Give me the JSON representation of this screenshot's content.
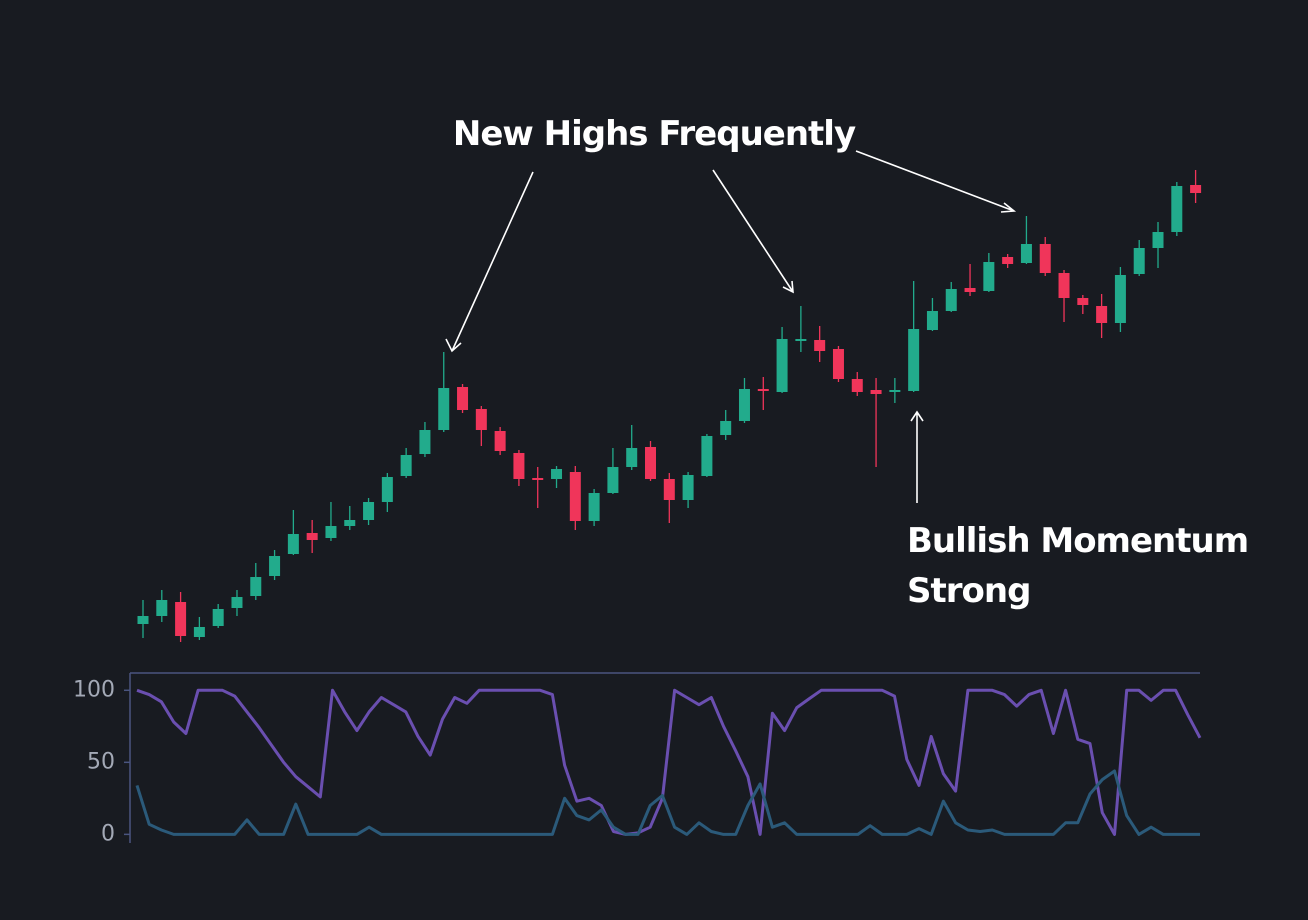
{
  "chart_data": [
    {
      "type": "candlestick",
      "annotations": [
        "New Highs Frequently",
        "Bullish Momentum",
        "Strong"
      ],
      "open": [
        7.6,
        8.4,
        9.8,
        6.3,
        7.4,
        9.2,
        10.4,
        12.4,
        14.6,
        16.7,
        16.2,
        17.4,
        18,
        19.8,
        22.4,
        24.6,
        27,
        31.3,
        29.1,
        26.9,
        24.7,
        22.2,
        22.1,
        22.8,
        17.9,
        20.7,
        23.3,
        25.3,
        22.1,
        20,
        22.4,
        26.5,
        27.9,
        31.1,
        30.8,
        36,
        36,
        35.1,
        32.1,
        31,
        30.9,
        30.9,
        37,
        38.9,
        41.2,
        40.9,
        44.3,
        43.7,
        45.6,
        42.7,
        40.2,
        39.4,
        37.7,
        42.6,
        45.2,
        46.8,
        51.5
      ],
      "high": [
        10,
        11,
        10.8,
        8.3,
        9.6,
        11,
        13.7,
        15,
        19,
        18,
        19.8,
        19.4,
        20.2,
        22.7,
        25.2,
        27.8,
        34.8,
        31.6,
        29.4,
        27.3,
        25,
        23.3,
        23.4,
        23.4,
        21.1,
        25.2,
        27.5,
        25.9,
        22.7,
        22.8,
        26.6,
        29,
        32.2,
        32.3,
        37.3,
        39.4,
        37.4,
        35.4,
        32.8,
        32.2,
        32.2,
        41.9,
        40.2,
        41.8,
        43.6,
        44.7,
        44.6,
        48.4,
        46.3,
        43,
        40.5,
        40.6,
        43.3,
        46,
        47.8,
        51.8,
        53
      ],
      "low": [
        6.2,
        7.8,
        5.8,
        6,
        7.2,
        8.4,
        10,
        12,
        14.5,
        14.7,
        15.9,
        17,
        17.5,
        18.8,
        22.2,
        24.3,
        26.8,
        28.7,
        25.4,
        24.5,
        21.4,
        19.2,
        21.2,
        17,
        17.4,
        20.6,
        23,
        21.9,
        17.7,
        19.2,
        22.3,
        26,
        27.7,
        29,
        30.7,
        34.8,
        33.8,
        31.8,
        30.4,
        23.3,
        29.7,
        30.8,
        36.9,
        38.8,
        40.4,
        40.8,
        43.2,
        43.6,
        42.4,
        37.8,
        38.6,
        36.2,
        36.8,
        42.4,
        43.2,
        46.4,
        49.7
      ],
      "close": [
        8.4,
        10,
        6.4,
        7.3,
        9.1,
        10.3,
        12.3,
        14.4,
        16.6,
        16,
        17.4,
        18,
        19.8,
        22.3,
        24.5,
        27,
        31.2,
        29,
        27,
        24.9,
        22.1,
        22,
        23.1,
        17.9,
        20.7,
        23.3,
        25.2,
        22.1,
        20,
        22.5,
        26.4,
        27.9,
        31.1,
        30.9,
        36.1,
        36.1,
        34.9,
        32.1,
        30.8,
        30.6,
        31,
        37.1,
        38.9,
        41.1,
        40.8,
        43.8,
        43.6,
        45.6,
        42.7,
        40.2,
        39.5,
        37.7,
        42.5,
        45.2,
        46.8,
        51.4,
        50.7
      ],
      "up_color": "#22ab8c",
      "down_color": "#f0355a",
      "ylim": [
        5,
        54
      ]
    },
    {
      "type": "line",
      "series": [
        {
          "color": "#6a4fb0",
          "values": [
            100,
            97,
            92,
            78,
            70,
            100,
            100,
            100,
            96,
            85,
            74,
            62,
            50,
            40,
            33,
            26,
            100,
            85,
            72,
            85,
            95,
            90,
            85,
            68,
            55,
            80,
            95,
            91,
            100,
            100,
            100,
            100,
            100,
            100,
            97,
            48,
            23,
            25,
            20,
            2,
            0,
            1,
            5,
            25,
            100,
            95,
            90,
            95,
            75,
            58,
            40,
            0,
            84,
            72,
            88,
            94,
            100,
            100,
            100,
            100,
            100,
            100,
            96,
            52,
            34,
            68,
            42,
            30,
            100,
            100,
            100,
            97,
            89,
            97,
            100,
            70,
            100,
            66,
            63,
            15,
            0,
            100,
            100,
            93,
            100,
            100,
            83,
            67
          ]
        },
        {
          "color": "#2b5a7a",
          "values": [
            34,
            7,
            3,
            0,
            0,
            0,
            0,
            0,
            0,
            10,
            0,
            0,
            0,
            21,
            0,
            0,
            0,
            0,
            0,
            5,
            0,
            0,
            0,
            0,
            0,
            0,
            0,
            0,
            0,
            0,
            0,
            0,
            0,
            0,
            0,
            25,
            13,
            10,
            17,
            5,
            0,
            0,
            20,
            27,
            5,
            0,
            8,
            2,
            0,
            0,
            20,
            35,
            5,
            8,
            0,
            0,
            0,
            0,
            0,
            0,
            6,
            0,
            0,
            0,
            4,
            0,
            23,
            8,
            3,
            2,
            3,
            0,
            0,
            0,
            0,
            0,
            8,
            8,
            28,
            38,
            44,
            13,
            0,
            5,
            0,
            0,
            0,
            0
          ]
        }
      ],
      "ylim": [
        -6,
        112
      ],
      "yticks": [
        0,
        50,
        100
      ]
    }
  ]
}
